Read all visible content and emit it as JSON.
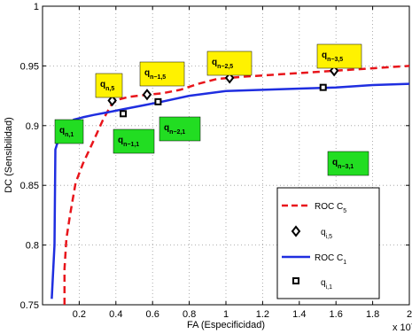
{
  "chart_data": {
    "type": "line",
    "xlabel": "FA (Especificidad)",
    "ylabel": "DC (Sensibilidad)",
    "x_multiplier": "x 10",
    "x_exponent": "-4",
    "xlim": [
      0,
      2
    ],
    "ylim": [
      0.75,
      1.0
    ],
    "x_ticks": [
      "0.2",
      "0.4",
      "0.6",
      "0.8",
      "1",
      "1.2",
      "1.4",
      "1.6",
      "1.8",
      "2"
    ],
    "x_tick_values": [
      0.2,
      0.4,
      0.6,
      0.8,
      1.0,
      1.2,
      1.4,
      1.6,
      1.8,
      2.0
    ],
    "y_ticks": [
      "0.75",
      "0.8",
      "0.85",
      "0.9",
      "0.95",
      "1"
    ],
    "y_tick_values": [
      0.75,
      0.8,
      0.85,
      0.9,
      0.95,
      1.0
    ],
    "grid": true,
    "legend_position": "bottom-right",
    "series": [
      {
        "name": "ROC C",
        "name_sub": "5",
        "color": "#e8151b",
        "dash": true,
        "x": [
          0.12,
          0.12,
          0.13,
          0.15,
          0.18,
          0.22,
          0.28,
          0.33,
          0.38,
          0.42,
          0.47,
          0.52,
          0.58,
          0.65,
          0.75,
          0.85,
          0.95,
          1.02,
          1.1,
          1.2,
          1.3,
          1.4,
          1.5,
          1.6,
          1.7,
          1.8,
          1.9,
          2.0
        ],
        "y": [
          0.75,
          0.78,
          0.805,
          0.825,
          0.852,
          0.868,
          0.888,
          0.905,
          0.919,
          0.922,
          0.924,
          0.925,
          0.926,
          0.927,
          0.93,
          0.935,
          0.939,
          0.94,
          0.941,
          0.942,
          0.943,
          0.944,
          0.945,
          0.946,
          0.947,
          0.948,
          0.949,
          0.95
        ]
      },
      {
        "name": "ROC C",
        "name_sub": "1",
        "color": "#1f2ee0",
        "dash": false,
        "x": [
          0.05,
          0.065,
          0.07,
          0.08,
          0.1,
          0.12,
          0.14,
          0.17,
          0.22,
          0.28,
          0.35,
          0.45,
          0.55,
          0.65,
          0.8,
          1.0,
          1.2,
          1.4,
          1.6,
          1.8,
          2.0
        ],
        "y": [
          0.755,
          0.8,
          0.88,
          0.885,
          0.89,
          0.895,
          0.9,
          0.905,
          0.907,
          0.909,
          0.911,
          0.914,
          0.917,
          0.92,
          0.925,
          0.929,
          0.93,
          0.931,
          0.932,
          0.934,
          0.935
        ]
      }
    ],
    "markers_q5": {
      "legend": "q",
      "legend_sub": "i,5",
      "points": [
        {
          "x": 0.38,
          "y": 0.921
        },
        {
          "x": 0.57,
          "y": 0.926
        },
        {
          "x": 1.02,
          "y": 0.94
        },
        {
          "x": 1.59,
          "y": 0.946
        }
      ]
    },
    "markers_q1": {
      "legend": "q",
      "legend_sub": "i,1",
      "points": [
        {
          "x": 0.12,
          "y": 0.895
        },
        {
          "x": 0.44,
          "y": 0.91
        },
        {
          "x": 0.63,
          "y": 0.92
        },
        {
          "x": 1.53,
          "y": 0.932
        }
      ]
    },
    "annotations": [
      {
        "text": "q",
        "sub": "n,1",
        "color": "#22dd22"
      },
      {
        "text": "q",
        "sub": "n,5",
        "color": "#fff200"
      },
      {
        "text": "q",
        "sub": "n−1,1",
        "color": "#22dd22"
      },
      {
        "text": "q",
        "sub": "n−1,5",
        "color": "#fff200"
      },
      {
        "text": "q",
        "sub": "n−2,1",
        "color": "#22dd22"
      },
      {
        "text": "q",
        "sub": "n−2,5",
        "color": "#fff200"
      },
      {
        "text": "q",
        "sub": "n−3,1",
        "color": "#22dd22"
      },
      {
        "text": "q",
        "sub": "n−3,5",
        "color": "#fff200"
      }
    ]
  }
}
